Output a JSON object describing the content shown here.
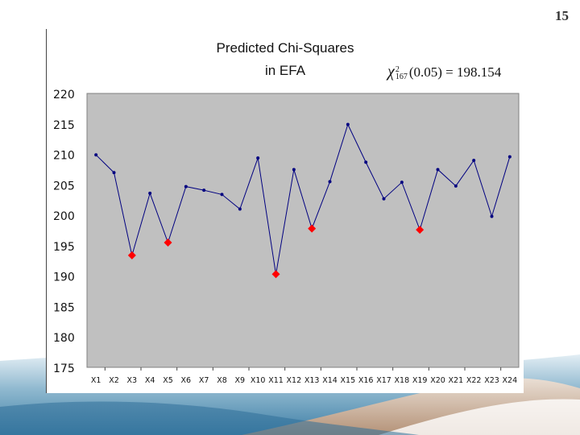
{
  "slide": {
    "page_number": "15"
  },
  "colors": {
    "plot_bg": "#c0c0c0",
    "line": "#000080",
    "highlight": "#ff0000"
  },
  "chart_data": {
    "type": "line",
    "title_line1": "Predicted Chi-Squares",
    "title_line2": "in EFA",
    "annotation": {
      "symbol": "χ",
      "superscript": "2",
      "subscript": "167",
      "expression": "(0.05) = 198.154"
    },
    "categories": [
      "X1",
      "X2",
      "X3",
      "X4",
      "X5",
      "X6",
      "X7",
      "X8",
      "X9",
      "X10",
      "X11",
      "X12",
      "X13",
      "X14",
      "X15",
      "X16",
      "X17",
      "X18",
      "X19",
      "X20",
      "X21",
      "X22",
      "X23",
      "X24"
    ],
    "values": [
      209.9,
      207.0,
      193.4,
      203.6,
      195.5,
      204.7,
      204.1,
      203.4,
      201.0,
      209.4,
      190.3,
      207.5,
      197.8,
      205.5,
      214.9,
      208.7,
      202.7,
      205.4,
      197.6,
      207.5,
      204.8,
      209.0,
      199.8,
      209.6
    ],
    "highlighted": [
      2,
      4,
      10,
      12,
      18
    ],
    "ylim": [
      175,
      220
    ],
    "yticks": [
      175,
      180,
      185,
      190,
      195,
      200,
      205,
      210,
      215,
      220
    ],
    "xlabel": "",
    "ylabel": ""
  }
}
